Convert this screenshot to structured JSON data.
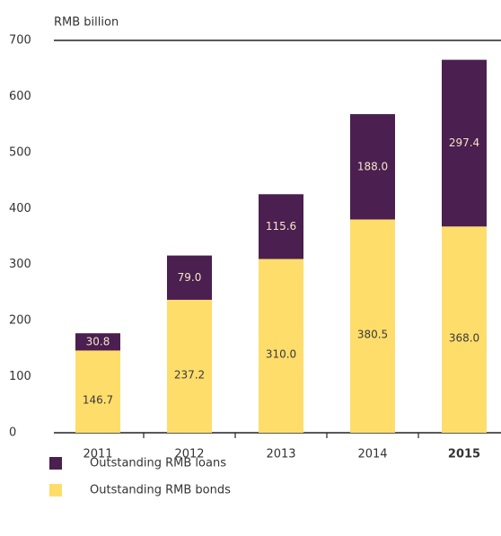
{
  "chart_data": {
    "type": "stacked_bar",
    "y_axis_label": "RMB billion",
    "categories": [
      "2011",
      "2012",
      "2013",
      "2014",
      "2015"
    ],
    "highlight_index": 4,
    "series": [
      {
        "name": "Outstanding RMB bonds",
        "color": "#fedd6b",
        "values": [
          146.7,
          237.2,
          310.0,
          380.5,
          368.0
        ],
        "value_labels": [
          "146.7",
          "237.2",
          "310.0",
          "380.5",
          "368.0"
        ],
        "label_color": "#3a3a3a"
      },
      {
        "name": "Outstanding RMB loans",
        "color": "#4b1f50",
        "values": [
          30.8,
          79.0,
          115.6,
          188.0,
          297.4
        ],
        "value_labels": [
          "30.8",
          "79.0",
          "115.6",
          "188.0",
          "297.4"
        ],
        "label_color": "#f3e6c8"
      }
    ],
    "legend_order": [
      1,
      0
    ],
    "ylim": [
      0,
      700
    ],
    "yticks": [
      0,
      100,
      200,
      300,
      400,
      500,
      600,
      700
    ]
  }
}
